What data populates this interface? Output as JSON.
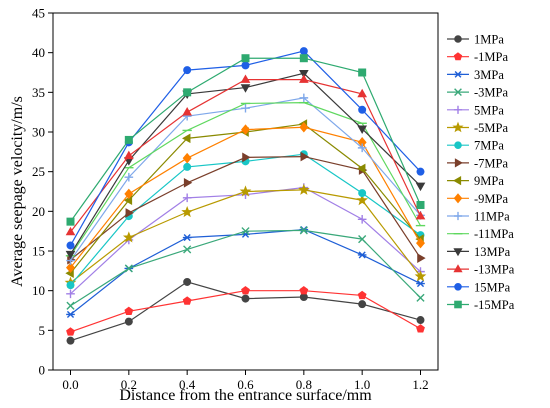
{
  "chart_data": {
    "type": "line",
    "title": "",
    "xlabel": "Distance from the entrance surface/mm",
    "ylabel": "Average seepage velocity/m/s",
    "x": [
      0.0,
      0.2,
      0.4,
      0.6,
      0.8,
      1.0,
      1.2
    ],
    "xticks": [
      "0.0",
      "0.2",
      "0.4",
      "0.6",
      "0.8",
      "1.0",
      "1.2"
    ],
    "xlim": [
      -0.06,
      1.26
    ],
    "ylim": [
      0,
      45
    ],
    "yticks": [
      "0",
      "5",
      "10",
      "15",
      "20",
      "25",
      "30",
      "35",
      "40",
      "45"
    ],
    "ytick_values": [
      0,
      5,
      10,
      15,
      20,
      25,
      30,
      35,
      40,
      45
    ],
    "grid": false,
    "legend_position": "right",
    "series": [
      {
        "name": "1MPa",
        "color": "#444444",
        "marker": "circle",
        "values": [
          3.7,
          6.1,
          11.1,
          9.0,
          9.2,
          8.3,
          6.3
        ]
      },
      {
        "name": "-1MPa",
        "color": "#ff3333",
        "marker": "pentagon",
        "values": [
          4.8,
          7.4,
          8.7,
          10.0,
          10.0,
          9.4,
          5.2
        ]
      },
      {
        "name": "3MPa",
        "color": "#1f5fd6",
        "marker": "star",
        "values": [
          7.0,
          12.8,
          16.7,
          17.1,
          17.7,
          14.5,
          10.9
        ]
      },
      {
        "name": "-3MPa",
        "color": "#3aa87a",
        "marker": "x",
        "values": [
          8.1,
          12.8,
          15.2,
          17.5,
          17.6,
          16.5,
          9.1
        ]
      },
      {
        "name": "5MPa",
        "color": "#a17fe6",
        "marker": "plus",
        "values": [
          9.6,
          16.4,
          21.7,
          22.1,
          23.0,
          19.0,
          12.4
        ]
      },
      {
        "name": "-5MPa",
        "color": "#b89a00",
        "marker": "star5",
        "values": [
          11.0,
          16.7,
          19.9,
          22.5,
          22.7,
          21.4,
          11.8
        ]
      },
      {
        "name": "7MPa",
        "color": "#18c6c6",
        "marker": "circle",
        "values": [
          10.7,
          19.4,
          25.6,
          26.3,
          27.2,
          22.3,
          17.0
        ]
      },
      {
        "name": "-7MPa",
        "color": "#7a3f2b",
        "marker": "triangle-right",
        "values": [
          13.9,
          19.8,
          23.6,
          26.8,
          26.9,
          25.2,
          14.1
        ]
      },
      {
        "name": "9MPa",
        "color": "#8a8a00",
        "marker": "triangle-left",
        "values": [
          12.2,
          21.4,
          29.2,
          30.0,
          31.0,
          25.4,
          16.5
        ]
      },
      {
        "name": "-9MPa",
        "color": "#ff8000",
        "marker": "diamond",
        "values": [
          12.9,
          22.2,
          26.7,
          30.3,
          30.6,
          28.7,
          16.0
        ]
      },
      {
        "name": "11MPa",
        "color": "#7fa8ea",
        "marker": "plus",
        "values": [
          13.8,
          24.3,
          32.0,
          33.0,
          34.3,
          28.0,
          19.5
        ]
      },
      {
        "name": "-11MPa",
        "color": "#5fd85f",
        "marker": "dash",
        "values": [
          14.4,
          25.5,
          30.2,
          33.6,
          33.7,
          31.1,
          18.2
        ]
      },
      {
        "name": "13MPa",
        "color": "#3a3a3a",
        "marker": "triangle-down",
        "values": [
          14.6,
          26.4,
          34.8,
          35.6,
          37.4,
          30.4,
          23.2
        ]
      },
      {
        "name": "-13MPa",
        "color": "#e63333",
        "marker": "triangle-up",
        "values": [
          17.4,
          27.0,
          32.5,
          36.6,
          36.6,
          34.8,
          19.4
        ]
      },
      {
        "name": "15MPa",
        "color": "#1f5fe6",
        "marker": "circle",
        "values": [
          15.7,
          28.7,
          37.8,
          38.4,
          40.2,
          32.8,
          25.0
        ]
      },
      {
        "name": "-15MPa",
        "color": "#2eaa70",
        "marker": "square",
        "values": [
          18.7,
          29.0,
          35.0,
          39.3,
          39.3,
          37.5,
          20.8
        ]
      }
    ]
  }
}
